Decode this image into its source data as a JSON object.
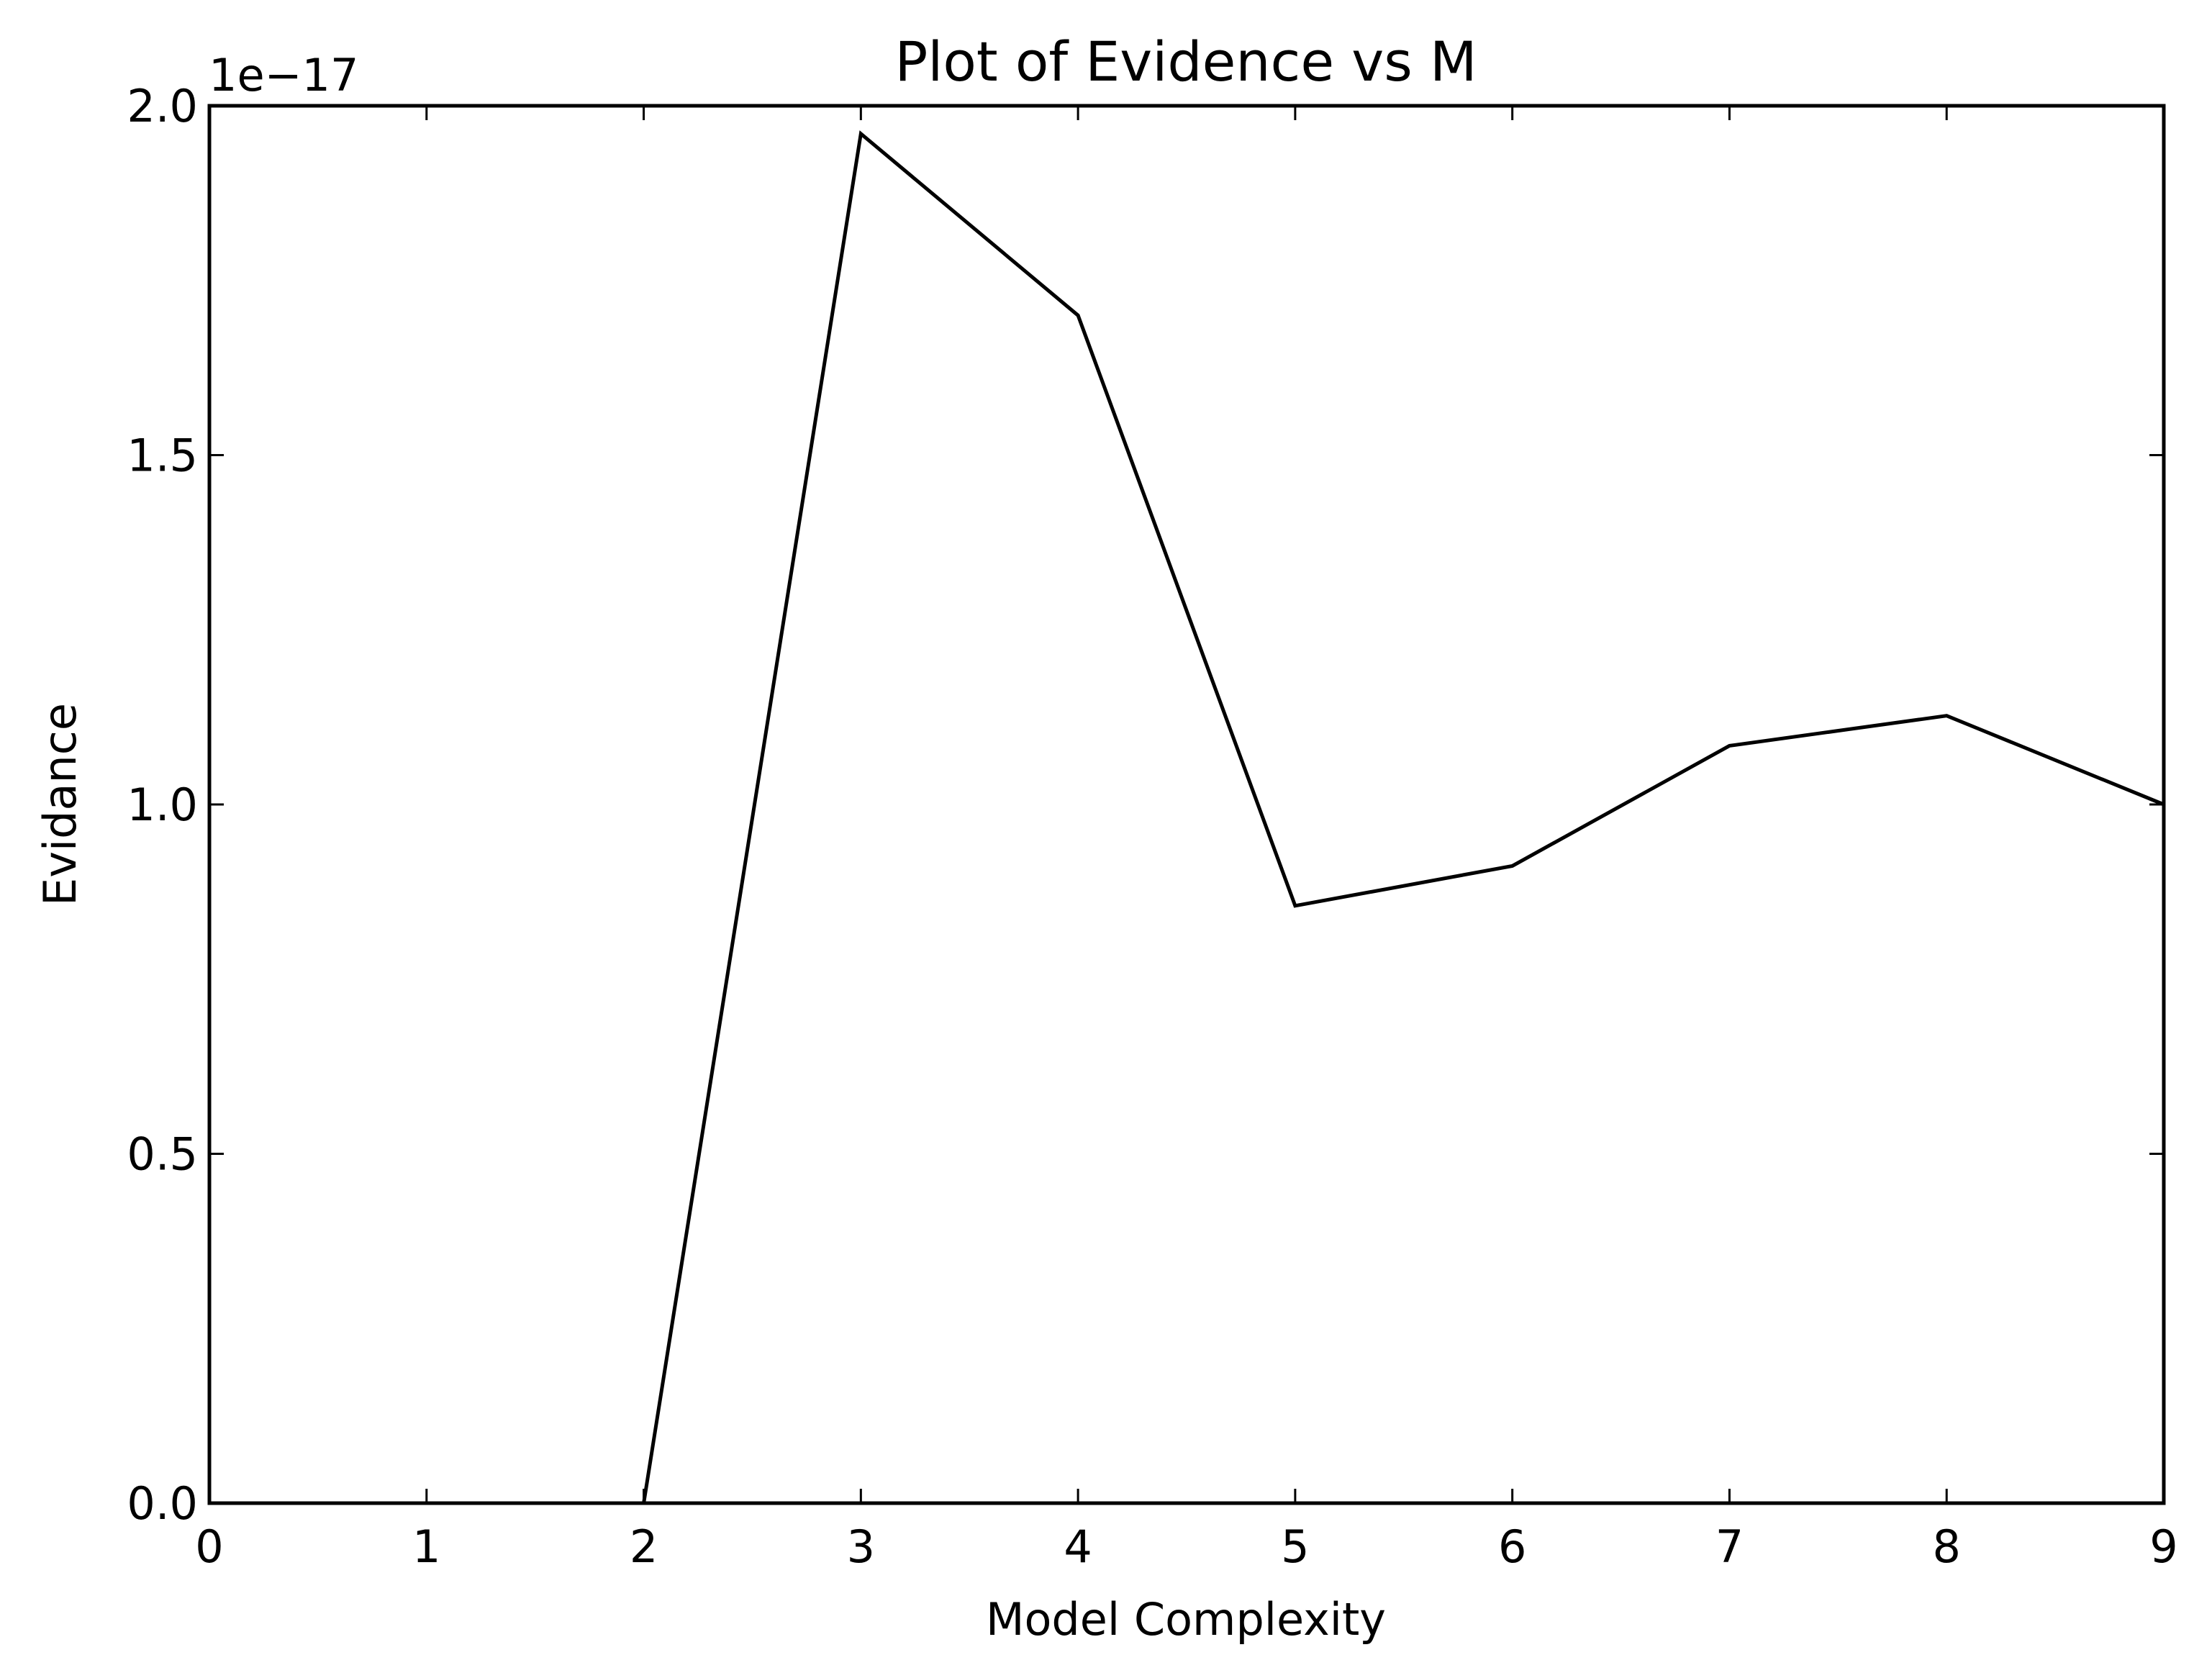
{
  "chart_data": {
    "type": "line",
    "title": "Plot of Evidence vs M",
    "xlabel": "Model Complexity",
    "ylabel": "Evidance",
    "y_offset_label": "1e−17",
    "xlim": [
      0,
      9
    ],
    "ylim": [
      0.0,
      2.0
    ],
    "x_ticks": [
      0,
      1,
      2,
      3,
      4,
      5,
      6,
      7,
      8,
      9
    ],
    "x_tick_labels": [
      "0",
      "1",
      "2",
      "3",
      "4",
      "5",
      "6",
      "7",
      "8",
      "9"
    ],
    "y_ticks": [
      0.0,
      0.5,
      1.0,
      1.5,
      2.0
    ],
    "y_tick_labels": [
      "0.0",
      "0.5",
      "1.0",
      "1.5",
      "2.0"
    ],
    "grid": false,
    "line_color": "#000000",
    "series": [
      {
        "x": [
          0,
          1,
          2,
          3,
          4,
          5,
          6,
          7,
          8,
          9
        ],
        "values": [
          0.0,
          0.0,
          0.0,
          1.96,
          1.7,
          0.855,
          0.912,
          1.084,
          1.127,
          1.0
        ]
      }
    ]
  }
}
